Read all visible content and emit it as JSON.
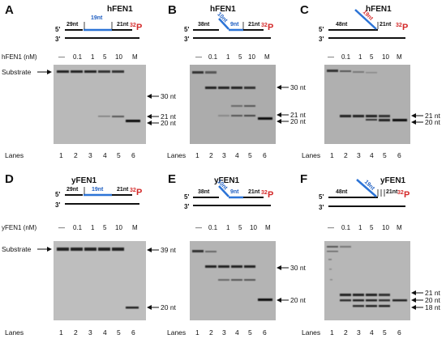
{
  "panels": [
    {
      "label": "A",
      "enzyme": "hFEN1",
      "flap": "19nt",
      "flap_color": "blue",
      "segments": [
        "29nt",
        "21nt"
      ],
      "conc_label": "hFEN1 (nM)",
      "conc": [
        "—",
        "0.1",
        "1",
        "5",
        "10",
        "M"
      ],
      "left_label": "Substrate",
      "right_labels": [
        "30 nt",
        "21 nt",
        "20 nt"
      ],
      "lanes_label": "Lanes",
      "lanes": [
        "1",
        "2",
        "3",
        "4",
        "5",
        "6"
      ]
    },
    {
      "label": "B",
      "enzyme": "hFEN1",
      "flap": "10nt",
      "flap_color": "blue",
      "segments": [
        "38nt",
        "9nt",
        "21nt"
      ],
      "conc_label": "",
      "conc": [
        "—",
        "0.1",
        "1",
        "5",
        "10",
        "M"
      ],
      "left_label": "",
      "right_labels": [
        "30 nt",
        "21 nt",
        "20 nt"
      ],
      "lanes_label": "Lanes",
      "lanes": [
        "1",
        "2",
        "3",
        "4",
        "5",
        "6"
      ]
    },
    {
      "label": "C",
      "enzyme": "hFEN1",
      "flap": "19nt",
      "flap_color": "red",
      "segments": [
        "48nt",
        "21nt"
      ],
      "conc_label": "",
      "conc": [
        "—",
        "0.1",
        "1",
        "5",
        "10",
        "M"
      ],
      "left_label": "",
      "right_labels": [
        "21 nt",
        "20 nt"
      ],
      "lanes_label": "Lanes",
      "lanes": [
        "1",
        "2",
        "3",
        "4",
        "5",
        "6"
      ]
    },
    {
      "label": "D",
      "enzyme": "yFEN1",
      "flap": "19nt",
      "flap_color": "blue",
      "segments": [
        "29nt",
        "21nt"
      ],
      "conc_label": "yFEN1 (nM)",
      "conc": [
        "—",
        "0.1",
        "1",
        "5",
        "10",
        "M"
      ],
      "left_label": "Substrate",
      "right_labels": [
        "39 nt",
        "20 nt"
      ],
      "lanes_label": "Lanes",
      "lanes": [
        "1",
        "2",
        "3",
        "4",
        "5",
        "6"
      ]
    },
    {
      "label": "E",
      "enzyme": "yFEN1",
      "flap": "10nt",
      "flap_color": "blue",
      "segments": [
        "38nt",
        "9nt",
        "21nt"
      ],
      "conc_label": "",
      "conc": [
        "—",
        "0.1",
        "1",
        "5",
        "10",
        "M"
      ],
      "left_label": "",
      "right_labels": [
        "30 nt",
        "20 nt"
      ],
      "lanes_label": "Lanes",
      "lanes": [
        "1",
        "2",
        "3",
        "4",
        "5",
        "6"
      ]
    },
    {
      "label": "F",
      "enzyme": "yFEN1",
      "flap": "19nt",
      "flap_color": "blue",
      "segments": [
        "48nt",
        "21nt"
      ],
      "conc_label": "",
      "conc": [
        "—",
        "0.1",
        "1",
        "5",
        "10",
        "M"
      ],
      "left_label": "",
      "right_labels": [
        "21 nt",
        "20 nt",
        "18 nt"
      ],
      "lanes_label": "Lanes",
      "lanes": [
        "1",
        "2",
        "3",
        "4",
        "5",
        "6"
      ]
    }
  ],
  "common": {
    "five_prime": "5'",
    "three_prime": "3'",
    "p32": "32",
    "P": "P"
  }
}
